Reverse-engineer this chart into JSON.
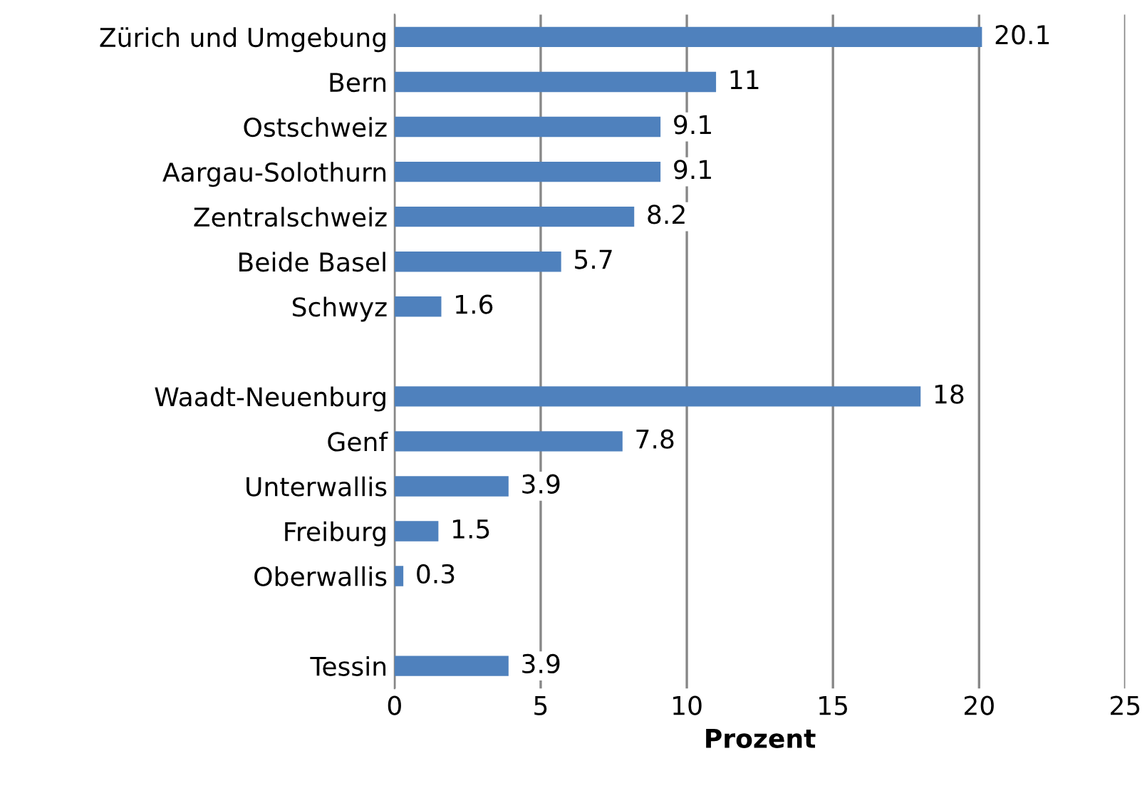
{
  "chart_data": {
    "type": "bar",
    "orientation": "horizontal",
    "xlabel": "Prozent",
    "categories": [
      "Zürich und Umgebung",
      "Bern",
      "Ostschweiz",
      "Aargau-Solothurn",
      "Zentralschweiz",
      "Beide Basel",
      "Schwyz",
      null,
      "Waadt-Neuenburg",
      "Genf",
      "Unterwallis",
      "Freiburg",
      "Oberwallis",
      null,
      "Tessin"
    ],
    "values": [
      20.1,
      11,
      9.1,
      9.1,
      8.2,
      5.7,
      1.6,
      null,
      18,
      7.8,
      3.9,
      1.5,
      0.3,
      null,
      3.9
    ],
    "color": "#4f81bd",
    "xlim": [
      0,
      25
    ],
    "xticks": [
      0,
      5,
      10,
      15,
      20,
      25
    ],
    "grid": "x",
    "data_labels": true
  }
}
